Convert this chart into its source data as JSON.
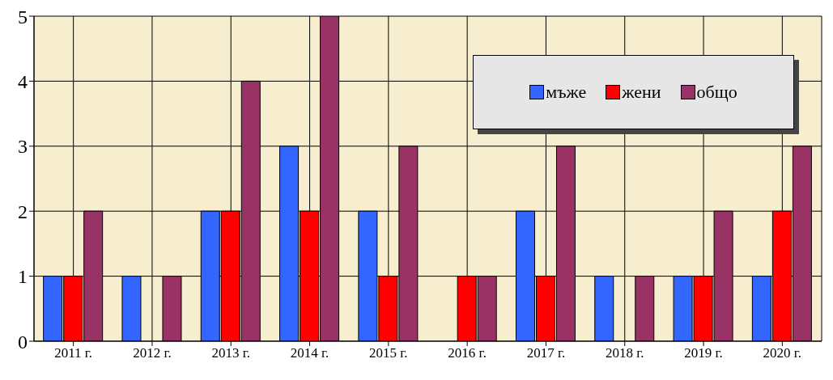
{
  "chart_data": {
    "type": "bar",
    "categories": [
      "2011 г.",
      "2012 г.",
      "2013 г.",
      "2014 г.",
      "2015 г.",
      "2016 г.",
      "2017 г.",
      "2018 г.",
      "2019 г.",
      "2020 г."
    ],
    "series": [
      {
        "name": "мъже",
        "color": "#3366ff",
        "values": [
          1,
          1,
          2,
          3,
          2,
          0,
          2,
          1,
          1,
          1
        ]
      },
      {
        "name": "жени",
        "color": "#ff0000",
        "values": [
          1,
          0,
          2,
          2,
          1,
          1,
          1,
          0,
          1,
          2
        ]
      },
      {
        "name": "общо",
        "color": "#993366",
        "values": [
          2,
          1,
          4,
          5,
          3,
          1,
          3,
          1,
          2,
          3
        ]
      }
    ],
    "ylim": [
      0,
      5
    ],
    "yticks": [
      0,
      1,
      2,
      3,
      4,
      5
    ],
    "grid": true,
    "legend": "top right"
  }
}
